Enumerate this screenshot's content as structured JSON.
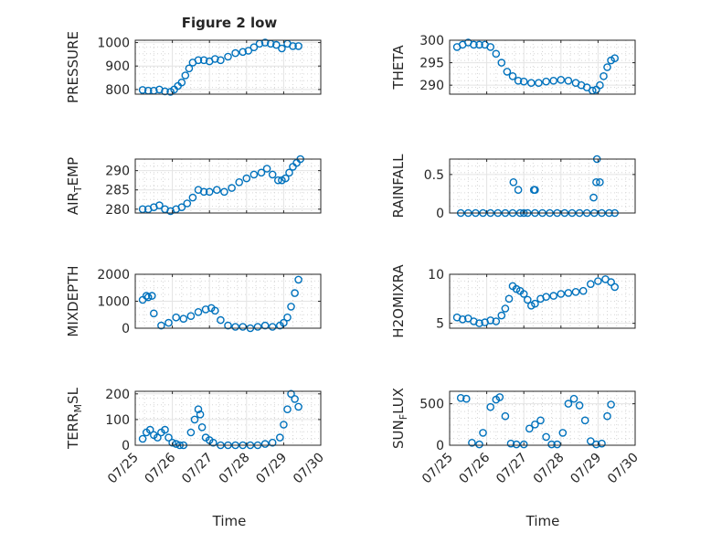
{
  "figure": {
    "title": "Figure 2 low",
    "xlabel": "Time",
    "xticklabels": [
      "07/25",
      "07/26",
      "07/27",
      "07/28",
      "07/29",
      "07/30"
    ],
    "marker_color": "#0072BD"
  },
  "chart_data": [
    {
      "type": "scatter",
      "ylabel": "PRESSURE",
      "ylim": [
        780,
        1010
      ],
      "yticks": [
        800,
        900,
        1000
      ],
      "xlim": [
        0,
        5
      ],
      "grid": true,
      "series": [
        {
          "x": [
            0.2,
            0.35,
            0.5,
            0.65,
            0.8,
            0.95,
            1.05,
            1.15,
            1.25,
            1.35,
            1.45,
            1.55,
            1.7,
            1.85,
            2.0,
            2.15,
            2.3,
            2.5,
            2.7,
            2.9,
            3.05,
            3.2,
            3.35,
            3.5,
            3.65,
            3.8,
            3.95,
            4.1,
            4.25,
            4.4
          ],
          "y": [
            798,
            795,
            795,
            800,
            792,
            790,
            800,
            815,
            830,
            860,
            890,
            915,
            925,
            925,
            920,
            930,
            925,
            940,
            955,
            960,
            965,
            980,
            995,
            1000,
            995,
            990,
            975,
            995,
            985,
            985
          ]
        }
      ]
    },
    {
      "type": "scatter",
      "ylabel": "THETA",
      "ylim": [
        288,
        300
      ],
      "yticks": [
        290,
        295,
        300
      ],
      "xlim": [
        0,
        5
      ],
      "grid": true,
      "series": [
        {
          "x": [
            0.2,
            0.35,
            0.5,
            0.65,
            0.8,
            0.95,
            1.1,
            1.25,
            1.4,
            1.55,
            1.7,
            1.85,
            2.0,
            2.2,
            2.4,
            2.6,
            2.8,
            3.0,
            3.2,
            3.4,
            3.55,
            3.7,
            3.85,
            3.95,
            4.05,
            4.15,
            4.25,
            4.35,
            4.45
          ],
          "y": [
            298.5,
            299,
            299.5,
            299,
            299,
            299,
            298.5,
            297,
            295,
            293,
            292,
            291,
            290.8,
            290.5,
            290.5,
            290.8,
            291,
            291.2,
            291,
            290.5,
            290,
            289.5,
            288.8,
            289,
            290,
            292,
            294,
            295.5,
            296
          ]
        }
      ]
    },
    {
      "type": "scatter",
      "ylabel": "AIR_TEMP",
      "ylim": [
        279,
        293
      ],
      "yticks": [
        280,
        285,
        290
      ],
      "xlim": [
        0,
        5
      ],
      "grid": true,
      "series": [
        {
          "x": [
            0.2,
            0.35,
            0.5,
            0.65,
            0.8,
            0.95,
            1.1,
            1.25,
            1.4,
            1.55,
            1.7,
            1.85,
            2.0,
            2.2,
            2.4,
            2.6,
            2.8,
            3.0,
            3.2,
            3.4,
            3.55,
            3.7,
            3.85,
            3.95,
            4.05,
            4.15,
            4.25,
            4.35,
            4.45
          ],
          "y": [
            280,
            280,
            280.5,
            281,
            280,
            279.5,
            280,
            280.5,
            281.5,
            283,
            285,
            284.5,
            284.5,
            285,
            284.5,
            285.5,
            287,
            288,
            289,
            289.5,
            290.5,
            289,
            287.5,
            287.5,
            288,
            289.5,
            291,
            292,
            293
          ]
        }
      ]
    },
    {
      "type": "scatter",
      "ylabel": "RAINFALL",
      "ylim": [
        0,
        0.7
      ],
      "yticks": [
        0,
        0.5
      ],
      "xlim": [
        0,
        5
      ],
      "grid": true,
      "series": [
        {
          "x": [
            0.3,
            0.5,
            0.7,
            0.9,
            1.1,
            1.3,
            1.5,
            1.7,
            1.9,
            2.0,
            2.1,
            2.3,
            2.5,
            2.7,
            2.9,
            3.1,
            3.3,
            3.5,
            3.7,
            3.9,
            4.1,
            4.3,
            4.45,
            1.72,
            1.85,
            2.27,
            2.3,
            3.88,
            3.95,
            3.97,
            4.05
          ],
          "y": [
            0,
            0,
            0,
            0,
            0,
            0,
            0,
            0,
            0,
            0,
            0,
            0,
            0,
            0,
            0,
            0,
            0,
            0,
            0,
            0,
            0,
            0,
            0,
            0.4,
            0.3,
            0.3,
            0.3,
            0.2,
            0.4,
            0.7,
            0.4
          ]
        }
      ]
    },
    {
      "type": "scatter",
      "ylabel": "MIXDEPTH",
      "ylim": [
        0,
        2000
      ],
      "yticks": [
        0,
        1000,
        2000
      ],
      "xlim": [
        0,
        5
      ],
      "grid": true,
      "series": [
        {
          "x": [
            0.2,
            0.3,
            0.35,
            0.45,
            0.5,
            0.7,
            0.9,
            1.1,
            1.3,
            1.5,
            1.7,
            1.9,
            2.05,
            2.15,
            2.3,
            2.5,
            2.7,
            2.9,
            3.1,
            3.3,
            3.5,
            3.7,
            3.9,
            4.0,
            4.1,
            4.2,
            4.3,
            4.4
          ],
          "y": [
            1050,
            1200,
            1150,
            1200,
            550,
            100,
            200,
            400,
            350,
            450,
            600,
            700,
            750,
            650,
            300,
            100,
            50,
            50,
            0,
            50,
            100,
            50,
            100,
            200,
            400,
            800,
            1300,
            1800
          ]
        }
      ]
    },
    {
      "type": "scatter",
      "ylabel": "H2OMIXRA",
      "ylim": [
        4.5,
        10
      ],
      "yticks": [
        5,
        10
      ],
      "xlim": [
        0,
        5
      ],
      "grid": true,
      "series": [
        {
          "x": [
            0.2,
            0.35,
            0.5,
            0.65,
            0.8,
            0.95,
            1.1,
            1.25,
            1.4,
            1.5,
            1.6,
            1.7,
            1.8,
            1.9,
            2.0,
            2.1,
            2.2,
            2.3,
            2.45,
            2.6,
            2.8,
            3.0,
            3.2,
            3.4,
            3.6,
            3.8,
            4.0,
            4.2,
            4.35,
            4.45
          ],
          "y": [
            5.6,
            5.4,
            5.5,
            5.2,
            5.0,
            5.1,
            5.3,
            5.2,
            5.8,
            6.5,
            7.5,
            8.8,
            8.5,
            8.3,
            8.0,
            7.4,
            6.8,
            7.0,
            7.5,
            7.7,
            7.8,
            8.0,
            8.1,
            8.2,
            8.3,
            9.0,
            9.3,
            9.5,
            9.2,
            8.7
          ]
        }
      ]
    },
    {
      "type": "scatter",
      "ylabel": "TERR_MSL",
      "ylim": [
        0,
        210
      ],
      "yticks": [
        0,
        100,
        200
      ],
      "xlim": [
        0,
        5
      ],
      "grid": true,
      "series": [
        {
          "x": [
            0.2,
            0.3,
            0.4,
            0.5,
            0.6,
            0.7,
            0.8,
            0.9,
            1.0,
            1.1,
            1.2,
            1.3,
            1.5,
            1.6,
            1.7,
            1.75,
            1.8,
            1.9,
            2.0,
            2.1,
            2.3,
            2.5,
            2.7,
            2.9,
            3.1,
            3.3,
            3.5,
            3.7,
            3.9,
            4.0,
            4.1,
            4.2,
            4.3,
            4.4
          ],
          "y": [
            25,
            50,
            60,
            40,
            30,
            50,
            60,
            30,
            10,
            5,
            0,
            0,
            50,
            100,
            140,
            120,
            70,
            30,
            20,
            10,
            0,
            0,
            0,
            0,
            0,
            0,
            5,
            10,
            30,
            80,
            140,
            200,
            180,
            150
          ]
        }
      ]
    },
    {
      "type": "scatter",
      "ylabel": "SUN_FLUX",
      "ylim": [
        0,
        650
      ],
      "yticks": [
        0,
        500
      ],
      "xlim": [
        0,
        5
      ],
      "grid": true,
      "series": [
        {
          "x": [
            0.3,
            0.45,
            0.6,
            0.8,
            0.9,
            1.1,
            1.25,
            1.35,
            1.5,
            1.65,
            1.8,
            2.0,
            2.15,
            2.3,
            2.45,
            2.6,
            2.75,
            2.9,
            3.05,
            3.2,
            3.35,
            3.5,
            3.65,
            3.8,
            3.95,
            4.1,
            4.25,
            4.35
          ],
          "y": [
            570,
            560,
            30,
            10,
            150,
            460,
            550,
            580,
            350,
            20,
            10,
            10,
            200,
            250,
            300,
            100,
            10,
            10,
            150,
            500,
            560,
            480,
            300,
            50,
            10,
            20,
            350,
            490
          ]
        }
      ]
    }
  ]
}
